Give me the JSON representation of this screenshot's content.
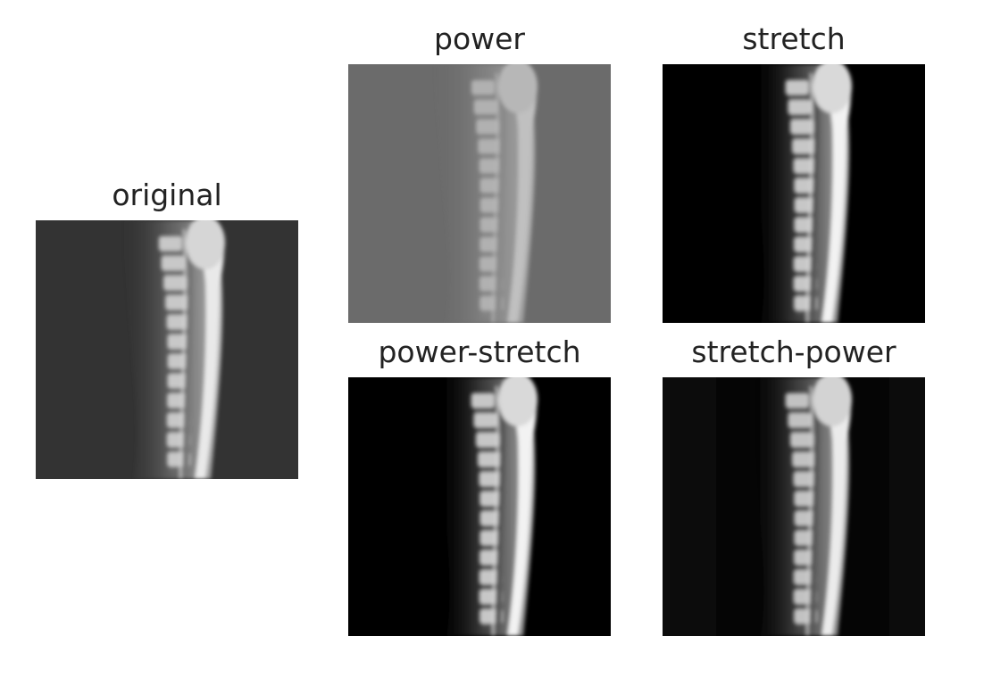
{
  "panels": [
    {
      "id": "original",
      "title": "original",
      "bg": "#333333",
      "tone": "original"
    },
    {
      "id": "power",
      "title": "power",
      "bg": "#6b6b6b",
      "tone": "power"
    },
    {
      "id": "stretch",
      "title": "stretch",
      "bg": "#000000",
      "tone": "stretch"
    },
    {
      "id": "power-stretch",
      "title": "power-stretch",
      "bg": "#000000",
      "tone": "power-stretch"
    },
    {
      "id": "stretch-power",
      "title": "stretch-power",
      "bg": "#050505",
      "tone": "stretch-power"
    }
  ]
}
